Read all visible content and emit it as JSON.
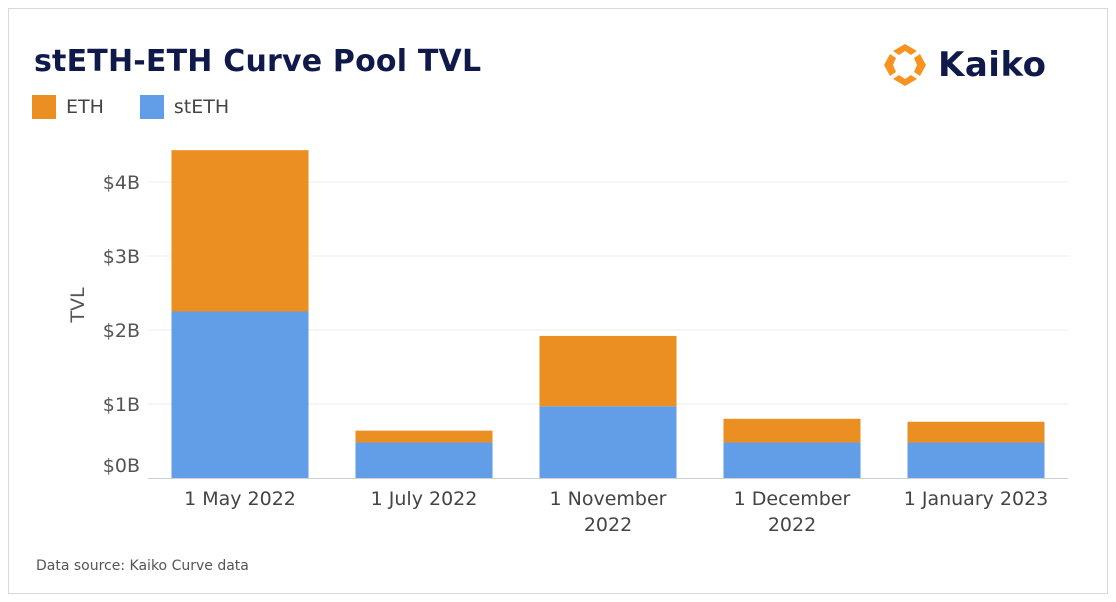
{
  "header": {
    "title": "stETH-ETH Curve Pool TVL",
    "logo_text": "Kaiko"
  },
  "footer": {
    "source": "Data source: Kaiko Curve data"
  },
  "colors": {
    "eth": "#ec8f23",
    "steth": "#629ee8",
    "title": "#101a4a",
    "logo_accent": "#f7931e"
  },
  "chart_data": {
    "type": "bar",
    "stacked": true,
    "ylabel": "TVL",
    "xlabel": "",
    "ylim": [
      0,
      4.6
    ],
    "y_ticks": [
      {
        "value": 0,
        "label": "$0B"
      },
      {
        "value": 1,
        "label": "$1B"
      },
      {
        "value": 2,
        "label": "$2B"
      },
      {
        "value": 3,
        "label": "$3B"
      },
      {
        "value": 4,
        "label": "$4B"
      }
    ],
    "grid": true,
    "legend_position": "top-left",
    "categories": [
      [
        "1 May 2022"
      ],
      [
        "1 July 2022"
      ],
      [
        "1 November",
        "2022"
      ],
      [
        "1 December",
        "2022"
      ],
      [
        "1 January 2023"
      ]
    ],
    "series": [
      {
        "name": "stETH",
        "color": "#629ee8",
        "values": [
          2.25,
          0.48,
          0.97,
          0.48,
          0.48
        ]
      },
      {
        "name": "ETH",
        "color": "#ec8f23",
        "values": [
          2.18,
          0.16,
          0.95,
          0.32,
          0.28
        ]
      }
    ],
    "legend": [
      {
        "name": "ETH",
        "color": "#ec8f23"
      },
      {
        "name": "stETH",
        "color": "#629ee8"
      }
    ]
  }
}
